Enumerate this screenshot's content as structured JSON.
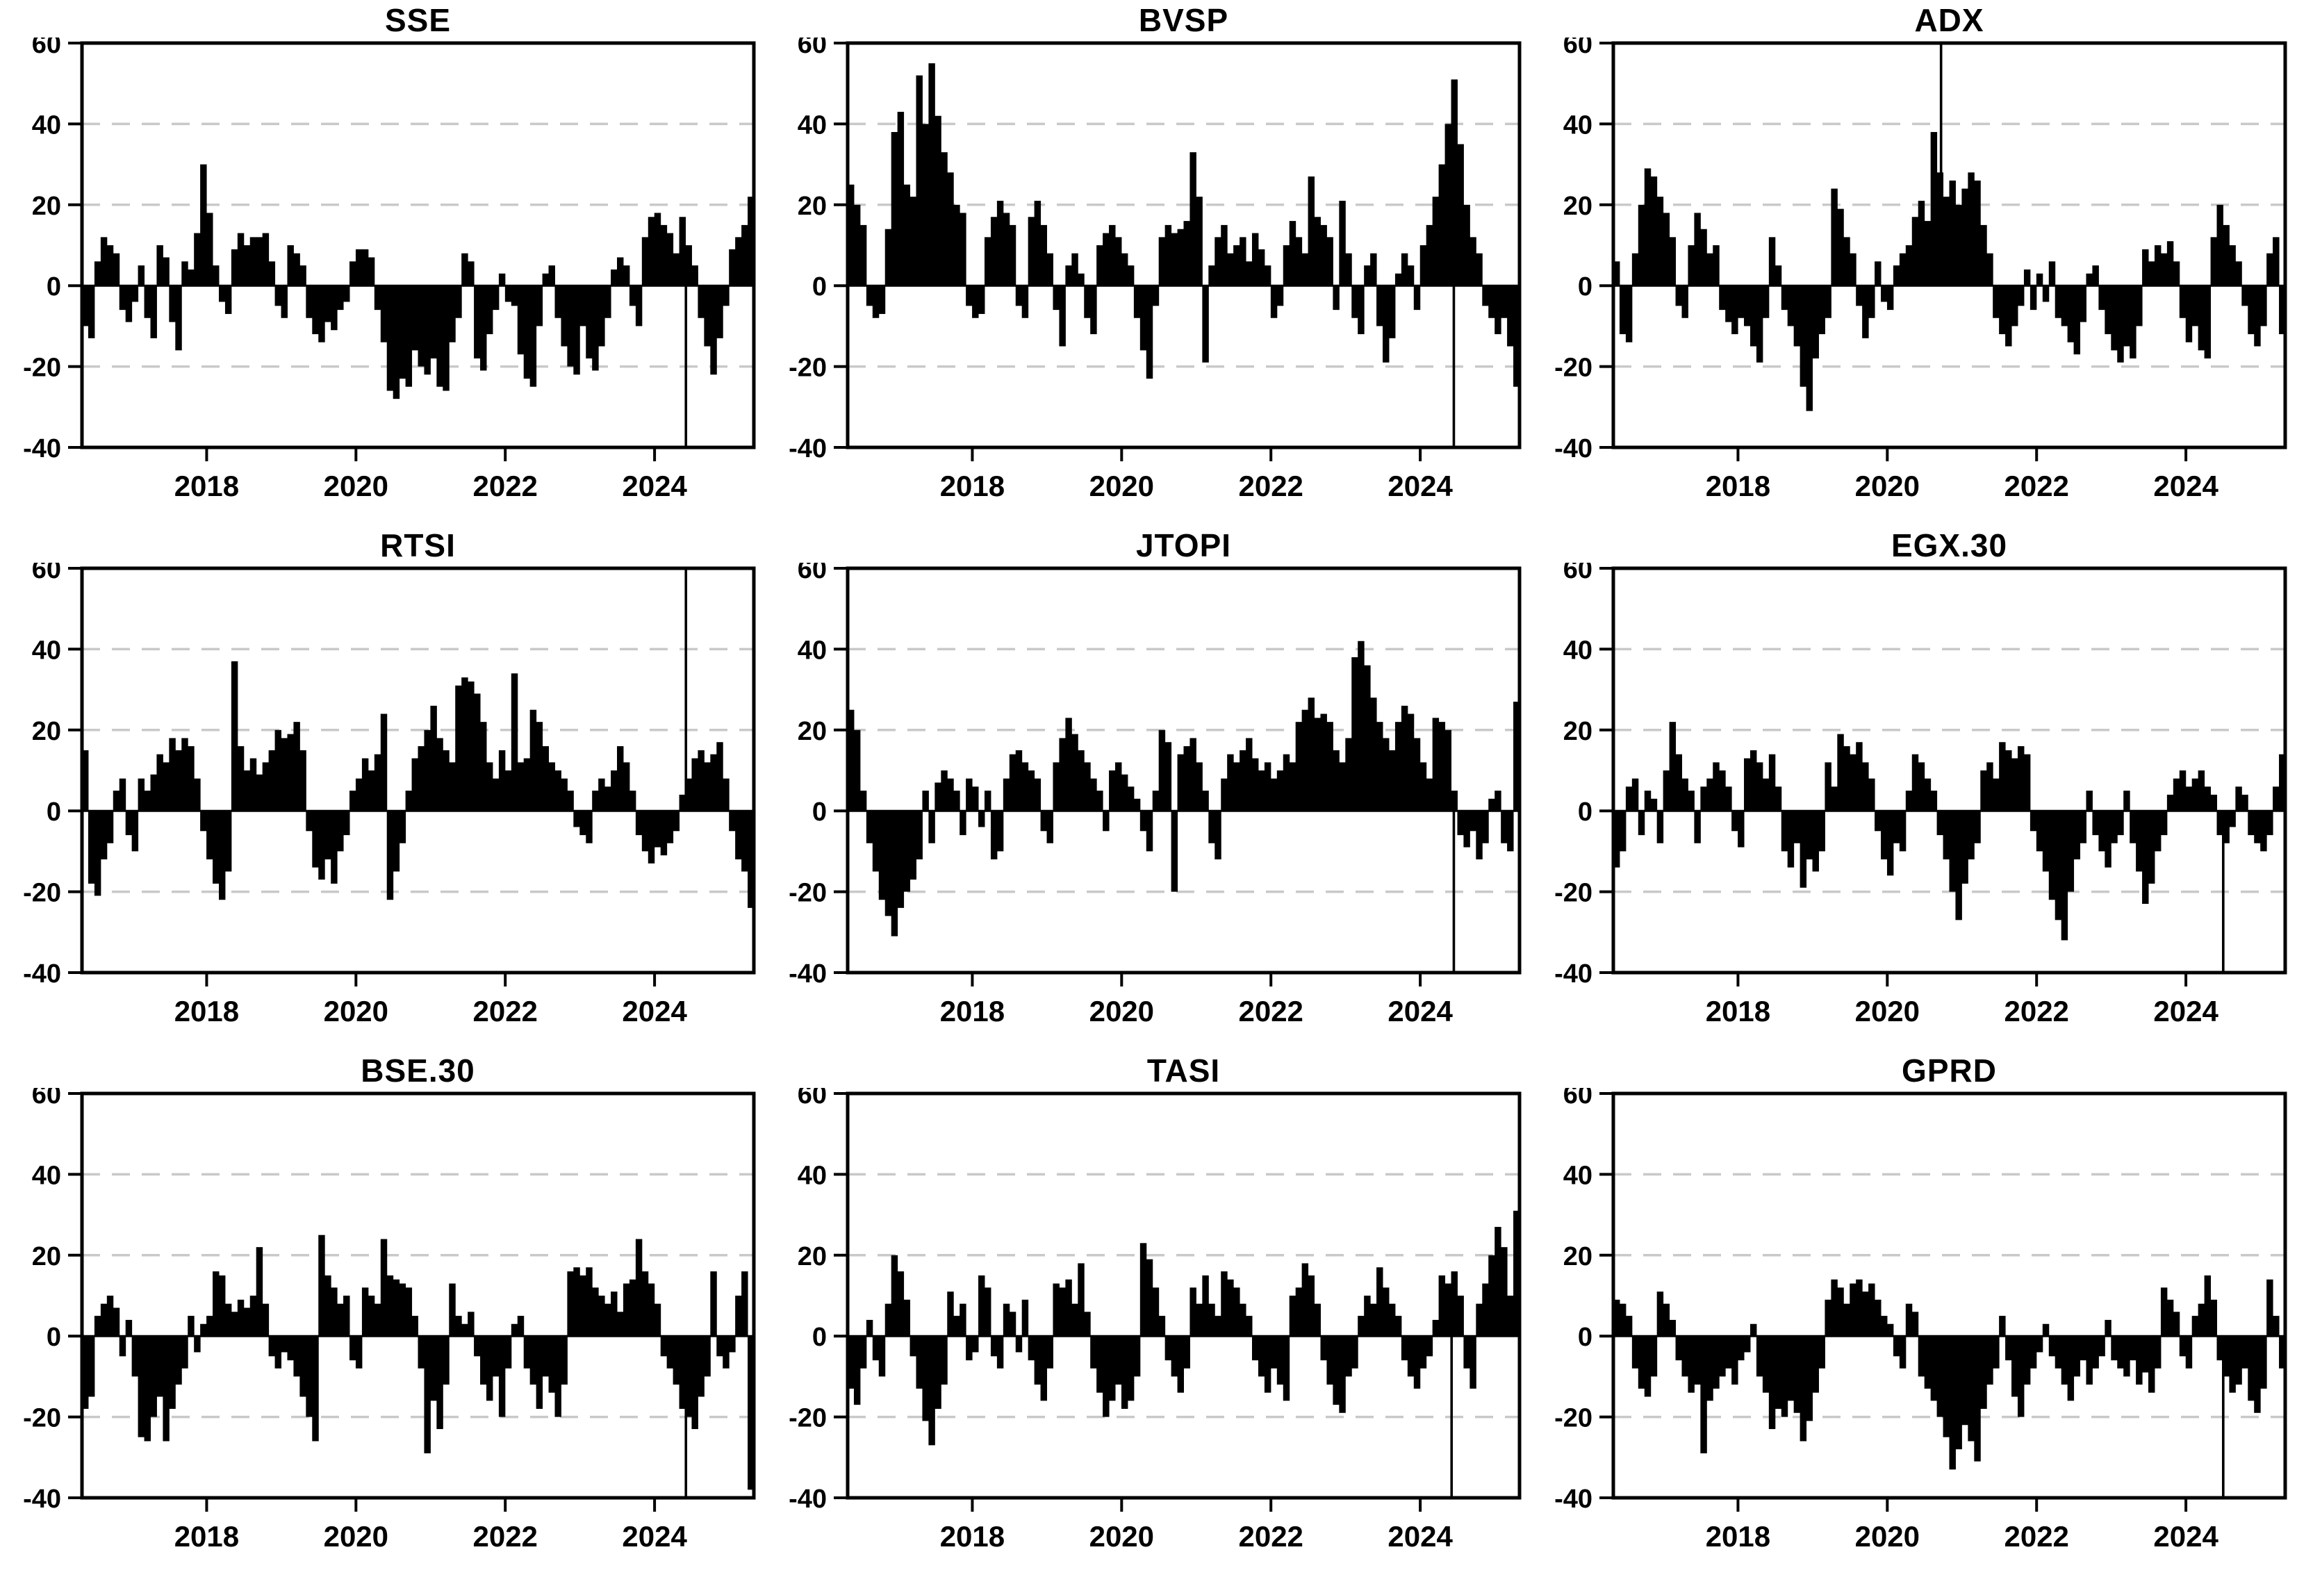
{
  "style": {
    "background": "#ffffff",
    "bar_color": "#000000",
    "grid_color": "#c9c9c9",
    "frame_color": "#000000"
  },
  "axes": {
    "ylim": [
      -40,
      60
    ],
    "yticks": [
      60,
      40,
      20,
      0,
      -20,
      -40
    ],
    "gridlines": [
      40,
      20,
      -20
    ],
    "xticks": [
      2018,
      2020,
      2022,
      2024
    ],
    "x_start": 2016.33,
    "x_end": 2025.33,
    "grid_on": true
  },
  "note": "Nine bar subplots of high-frequency (weekly) series; values below are visual ~monthly estimates read from the bars. 'spikes' are single extreme observations drawn as thin lines clipped by the axis box.",
  "chart_data": [
    {
      "type": "bar",
      "title": "SSE",
      "xlabel": "",
      "ylabel": "",
      "values": [
        -10,
        -13,
        6,
        12,
        10,
        8,
        -6,
        -9,
        -4,
        5,
        -8,
        -13,
        10,
        7,
        -9,
        -16,
        6,
        4,
        13,
        30,
        18,
        5,
        -4,
        -7,
        9,
        13,
        10,
        12,
        12,
        13,
        6,
        -5,
        -8,
        10,
        8,
        5,
        -8,
        -12,
        -14,
        -9,
        -11,
        -6,
        -4,
        6,
        9,
        9,
        7,
        -6,
        -14,
        -26,
        -28,
        -23,
        -25,
        -16,
        -20,
        -22,
        -18,
        -25,
        -26,
        -14,
        -8,
        8,
        6,
        -18,
        -21,
        -12,
        -6,
        3,
        -4,
        -5,
        -17,
        -23,
        -25,
        -10,
        3,
        5,
        -8,
        -15,
        -20,
        -22,
        -10,
        -18,
        -21,
        -15,
        -8,
        4,
        7,
        5,
        -5,
        -10,
        12,
        17,
        18,
        15,
        13,
        8,
        17,
        10,
        5,
        -8,
        -15,
        -22,
        -13,
        -5,
        9,
        12,
        15,
        22
      ],
      "spikes": [
        {
          "x": 2024.42,
          "v": -42
        }
      ]
    },
    {
      "type": "bar",
      "title": "BVSP",
      "xlabel": "",
      "ylabel": "",
      "values": [
        25,
        20,
        15,
        -5,
        -8,
        -7,
        14,
        38,
        43,
        25,
        22,
        52,
        40,
        55,
        42,
        33,
        28,
        20,
        18,
        -5,
        -8,
        -7,
        12,
        17,
        21,
        18,
        15,
        -5,
        -8,
        17,
        21,
        15,
        8,
        -6,
        -15,
        5,
        8,
        3,
        -8,
        -12,
        10,
        13,
        15,
        12,
        8,
        5,
        -8,
        -16,
        -23,
        -5,
        12,
        15,
        13,
        14,
        16,
        33,
        22,
        -19,
        5,
        12,
        15,
        8,
        10,
        12,
        6,
        13,
        9,
        5,
        -8,
        -5,
        10,
        16,
        12,
        8,
        27,
        17,
        15,
        12,
        -6,
        21,
        8,
        -8,
        -12,
        5,
        8,
        -10,
        -19,
        -13,
        3,
        8,
        5,
        -6,
        10,
        15,
        22,
        30,
        40,
        51,
        35,
        20,
        12,
        8,
        -5,
        -8,
        -12,
        -8,
        -15,
        -25
      ],
      "spikes": [
        {
          "x": 2024.45,
          "v": -42
        }
      ]
    },
    {
      "type": "bar",
      "title": "ADX",
      "xlabel": "",
      "ylabel": "",
      "values": [
        6,
        -12,
        -14,
        8,
        20,
        29,
        27,
        22,
        18,
        12,
        -5,
        -8,
        10,
        18,
        14,
        8,
        10,
        -6,
        -9,
        -12,
        -8,
        -10,
        -15,
        -19,
        -8,
        12,
        5,
        -6,
        -10,
        -15,
        -25,
        -31,
        -18,
        -12,
        -8,
        24,
        19,
        12,
        8,
        -5,
        -13,
        -8,
        6,
        -4,
        -6,
        5,
        8,
        10,
        17,
        21,
        16,
        38,
        28,
        22,
        26,
        20,
        24,
        28,
        26,
        15,
        8,
        -8,
        -12,
        -15,
        -10,
        -5,
        4,
        -6,
        3,
        -4,
        6,
        -8,
        -10,
        -14,
        -17,
        -9,
        3,
        5,
        -6,
        -12,
        -16,
        -19,
        -15,
        -18,
        -10,
        9,
        6,
        10,
        8,
        11,
        6,
        -8,
        -14,
        -10,
        -16,
        -18,
        12,
        20,
        15,
        10,
        6,
        -5,
        -12,
        -15,
        -10,
        8,
        12,
        -12
      ],
      "spikes": [
        {
          "x": 2020.72,
          "v": 65
        }
      ]
    },
    {
      "type": "bar",
      "title": "RTSI",
      "xlabel": "",
      "ylabel": "",
      "values": [
        15,
        -18,
        -21,
        -12,
        -8,
        5,
        8,
        -6,
        -10,
        8,
        5,
        9,
        14,
        12,
        18,
        15,
        18,
        16,
        8,
        -5,
        -12,
        -18,
        -22,
        -15,
        37,
        16,
        10,
        13,
        9,
        12,
        15,
        20,
        18,
        19,
        22,
        15,
        -5,
        -14,
        -17,
        -12,
        -18,
        -10,
        -6,
        5,
        8,
        13,
        10,
        14,
        24,
        -22,
        -15,
        -8,
        5,
        13,
        16,
        20,
        26,
        18,
        15,
        12,
        31,
        33,
        32,
        29,
        22,
        12,
        8,
        15,
        10,
        34,
        12,
        13,
        25,
        22,
        16,
        12,
        10,
        8,
        5,
        -4,
        -6,
        -8,
        5,
        8,
        6,
        10,
        16,
        12,
        5,
        -6,
        -10,
        -13,
        -9,
        -11,
        -8,
        -5,
        4,
        8,
        13,
        15,
        12,
        14,
        17,
        8,
        -5,
        -12,
        -15,
        -24
      ],
      "spikes": [
        {
          "x": 2024.42,
          "v": 65
        }
      ]
    },
    {
      "type": "bar",
      "title": "JTOPI",
      "xlabel": "",
      "ylabel": "",
      "values": [
        25,
        20,
        5,
        -8,
        -15,
        -22,
        -26,
        -31,
        -24,
        -20,
        -17,
        -12,
        5,
        -8,
        7,
        10,
        8,
        5,
        -6,
        8,
        6,
        -4,
        5,
        -12,
        -10,
        8,
        14,
        15,
        12,
        10,
        8,
        -5,
        -8,
        12,
        18,
        23,
        19,
        15,
        12,
        8,
        5,
        -5,
        10,
        12,
        9,
        6,
        3,
        -5,
        -10,
        5,
        20,
        17,
        -20,
        14,
        16,
        18,
        12,
        5,
        -8,
        -12,
        8,
        14,
        12,
        15,
        18,
        13,
        10,
        12,
        8,
        10,
        14,
        12,
        22,
        25,
        28,
        23,
        24,
        22,
        15,
        12,
        18,
        38,
        42,
        36,
        28,
        22,
        18,
        15,
        22,
        26,
        24,
        18,
        12,
        8,
        23,
        22,
        20,
        5,
        -6,
        -9,
        -5,
        -12,
        -8,
        3,
        5,
        -8,
        -10,
        27
      ],
      "spikes": [
        {
          "x": 2024.45,
          "v": -42
        }
      ]
    },
    {
      "type": "bar",
      "title": "EGX.30",
      "xlabel": "",
      "ylabel": "",
      "values": [
        -14,
        -10,
        6,
        8,
        -6,
        5,
        3,
        -8,
        10,
        22,
        14,
        8,
        5,
        -8,
        6,
        8,
        12,
        10,
        6,
        -5,
        -9,
        13,
        15,
        12,
        8,
        14,
        6,
        -10,
        -14,
        -8,
        -19,
        -12,
        -15,
        -10,
        12,
        6,
        19,
        16,
        14,
        17,
        12,
        8,
        -5,
        -12,
        -16,
        -8,
        -10,
        5,
        14,
        12,
        8,
        5,
        -6,
        -12,
        -20,
        -27,
        -18,
        -12,
        -8,
        10,
        12,
        8,
        17,
        15,
        13,
        16,
        14,
        -5,
        -10,
        -15,
        -22,
        -27,
        -32,
        -20,
        -12,
        -8,
        5,
        -6,
        -10,
        -14,
        -8,
        -6,
        5,
        -8,
        -15,
        -23,
        -18,
        -10,
        -6,
        4,
        8,
        10,
        6,
        8,
        10,
        6,
        4,
        -6,
        -8,
        -4,
        6,
        4,
        -6,
        -8,
        -10,
        -6,
        6,
        14
      ],
      "spikes": [
        {
          "x": 2024.5,
          "v": -42
        }
      ]
    },
    {
      "type": "bar",
      "title": "BSE.30",
      "xlabel": "",
      "ylabel": "",
      "values": [
        -18,
        -15,
        5,
        8,
        10,
        7,
        -5,
        4,
        -10,
        -25,
        -26,
        -20,
        -15,
        -26,
        -18,
        -12,
        -8,
        5,
        -4,
        3,
        5,
        16,
        15,
        8,
        6,
        9,
        7,
        10,
        22,
        8,
        -5,
        -8,
        -4,
        -6,
        -10,
        -15,
        -20,
        -26,
        25,
        15,
        12,
        8,
        10,
        -6,
        -8,
        12,
        10,
        8,
        24,
        15,
        14,
        13,
        12,
        5,
        -8,
        -29,
        -16,
        -23,
        -12,
        13,
        5,
        3,
        6,
        -5,
        -12,
        -16,
        -10,
        -20,
        -8,
        3,
        5,
        -8,
        -12,
        -18,
        -10,
        -14,
        -20,
        -12,
        16,
        17,
        15,
        17,
        12,
        10,
        8,
        11,
        6,
        13,
        14,
        24,
        16,
        13,
        8,
        -5,
        -8,
        -12,
        -18,
        -20,
        -23,
        -15,
        -10,
        16,
        -5,
        -8,
        -4,
        10,
        16,
        -38
      ],
      "spikes": [
        {
          "x": 2024.42,
          "v": -42
        }
      ]
    },
    {
      "type": "bar",
      "title": "TASI",
      "xlabel": "",
      "ylabel": "",
      "values": [
        -13,
        -17,
        -8,
        4,
        -6,
        -10,
        8,
        20,
        16,
        9,
        -5,
        -13,
        -21,
        -27,
        -18,
        -12,
        11,
        5,
        8,
        -6,
        -4,
        15,
        12,
        -5,
        -8,
        8,
        6,
        -4,
        9,
        -6,
        -12,
        -16,
        -8,
        13,
        12,
        14,
        8,
        18,
        6,
        -8,
        -14,
        -20,
        -16,
        -12,
        -18,
        -16,
        -10,
        23,
        19,
        12,
        5,
        -6,
        -10,
        -14,
        -8,
        12,
        8,
        15,
        8,
        5,
        16,
        14,
        12,
        8,
        5,
        -6,
        -10,
        -14,
        -8,
        -12,
        -16,
        10,
        12,
        18,
        15,
        8,
        -6,
        -12,
        -17,
        -19,
        -10,
        -8,
        5,
        10,
        8,
        17,
        12,
        8,
        5,
        -6,
        -10,
        -13,
        -8,
        -5,
        4,
        15,
        13,
        16,
        10,
        -8,
        -13,
        8,
        13,
        20,
        27,
        22,
        10,
        31
      ],
      "spikes": [
        {
          "x": 2024.42,
          "v": -42
        }
      ]
    },
    {
      "type": "bar",
      "title": "GPRD",
      "xlabel": "",
      "ylabel": "",
      "values": [
        9,
        8,
        5,
        -8,
        -13,
        -15,
        -10,
        11,
        8,
        4,
        -6,
        -10,
        -14,
        -12,
        -29,
        -16,
        -13,
        -10,
        -8,
        -12,
        -6,
        -4,
        3,
        -10,
        -14,
        -23,
        -18,
        -20,
        -16,
        -19,
        -26,
        -21,
        -14,
        -8,
        9,
        14,
        12,
        8,
        13,
        14,
        11,
        13,
        9,
        5,
        3,
        -5,
        -8,
        8,
        6,
        -10,
        -13,
        -16,
        -20,
        -25,
        -33,
        -28,
        -22,
        -26,
        -31,
        -18,
        -12,
        -8,
        5,
        -6,
        -15,
        -20,
        -12,
        -8,
        -4,
        3,
        -5,
        -8,
        -12,
        -16,
        -10,
        -6,
        -12,
        -8,
        -5,
        4,
        -6,
        -8,
        -10,
        -6,
        -12,
        -9,
        -14,
        -8,
        12,
        9,
        6,
        -5,
        -8,
        5,
        8,
        15,
        9,
        -6,
        -10,
        -14,
        -12,
        -8,
        -16,
        -19,
        -13,
        14,
        5,
        -8
      ],
      "spikes": [
        {
          "x": 2024.5,
          "v": -42
        }
      ]
    }
  ]
}
